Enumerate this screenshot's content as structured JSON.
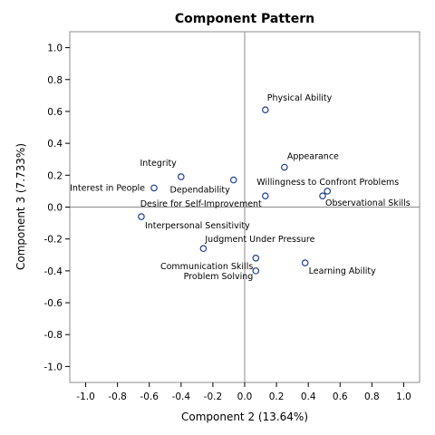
{
  "chart_data": {
    "type": "scatter",
    "title": "Component Pattern",
    "xlabel": "Component 2 (13.64%)",
    "ylabel": "Component 3 (7.733%)",
    "xlim": [
      -1.1,
      1.1
    ],
    "ylim": [
      -1.1,
      1.1
    ],
    "xticks": [
      "-1.0",
      "-0.8",
      "-0.6",
      "-0.4",
      "-0.2",
      "0.0",
      "0.2",
      "0.4",
      "0.6",
      "0.8",
      "1.0"
    ],
    "yticks": [
      "-1.0",
      "-0.8",
      "-0.6",
      "-0.4",
      "-0.2",
      "0.0",
      "0.2",
      "0.4",
      "0.6",
      "0.8",
      "1.0"
    ],
    "grid": false,
    "reference_lines": {
      "x": 0,
      "y": 0
    },
    "marker_color": "#1f3f8f",
    "points": [
      {
        "label": "Physical Ability",
        "x": 0.13,
        "y": 0.61
      },
      {
        "label": "Appearance",
        "x": 0.25,
        "y": 0.25
      },
      {
        "label": "Integrity",
        "x": -0.4,
        "y": 0.19
      },
      {
        "label": "Dependability",
        "x": -0.07,
        "y": 0.17
      },
      {
        "label": "Interest in People",
        "x": -0.57,
        "y": 0.12
      },
      {
        "label": "Willingness to Confront Problems",
        "x": 0.52,
        "y": 0.1
      },
      {
        "label": "Observational Skills",
        "x": 0.49,
        "y": 0.07
      },
      {
        "label": "Desire for Self-Improvement",
        "x": 0.13,
        "y": 0.07
      },
      {
        "label": "Interpersonal Sensitivity",
        "x": -0.65,
        "y": -0.06
      },
      {
        "label": "Judgment Under Pressure",
        "x": -0.26,
        "y": -0.26
      },
      {
        "label": "Communication Skills",
        "x": 0.07,
        "y": -0.32
      },
      {
        "label": "Learning Ability",
        "x": 0.38,
        "y": -0.35
      },
      {
        "label": "Problem Solving",
        "x": 0.07,
        "y": -0.4
      }
    ]
  }
}
